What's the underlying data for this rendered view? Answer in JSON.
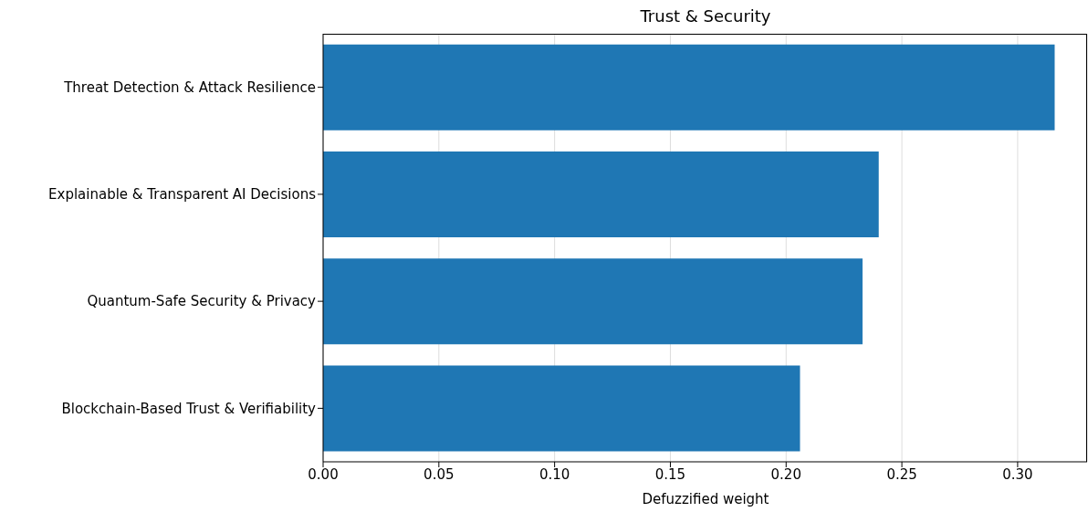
{
  "chart_data": {
    "type": "bar",
    "orientation": "horizontal",
    "title": "Trust & Security",
    "xlabel": "Defuzzified weight",
    "categories": [
      "Threat Detection & Attack Resilience",
      "Explainable & Transparent AI Decisions",
      "Quantum-Safe Security & Privacy",
      "Blockchain-Based Trust & Verifiability"
    ],
    "values": [
      0.316,
      0.24,
      0.233,
      0.206
    ],
    "color": "#1f77b4",
    "xlim": [
      0,
      0.33
    ],
    "xticks": [
      {
        "value": 0,
        "label": "0.00"
      },
      {
        "value": 0.05,
        "label": "0.05"
      },
      {
        "value": 0.1,
        "label": "0.10"
      },
      {
        "value": 0.15,
        "label": "0.15"
      },
      {
        "value": 0.2,
        "label": "0.20"
      },
      {
        "value": 0.25,
        "label": "0.25"
      },
      {
        "value": 0.3,
        "label": "0.30"
      }
    ],
    "grid": "x",
    "legend": false
  }
}
